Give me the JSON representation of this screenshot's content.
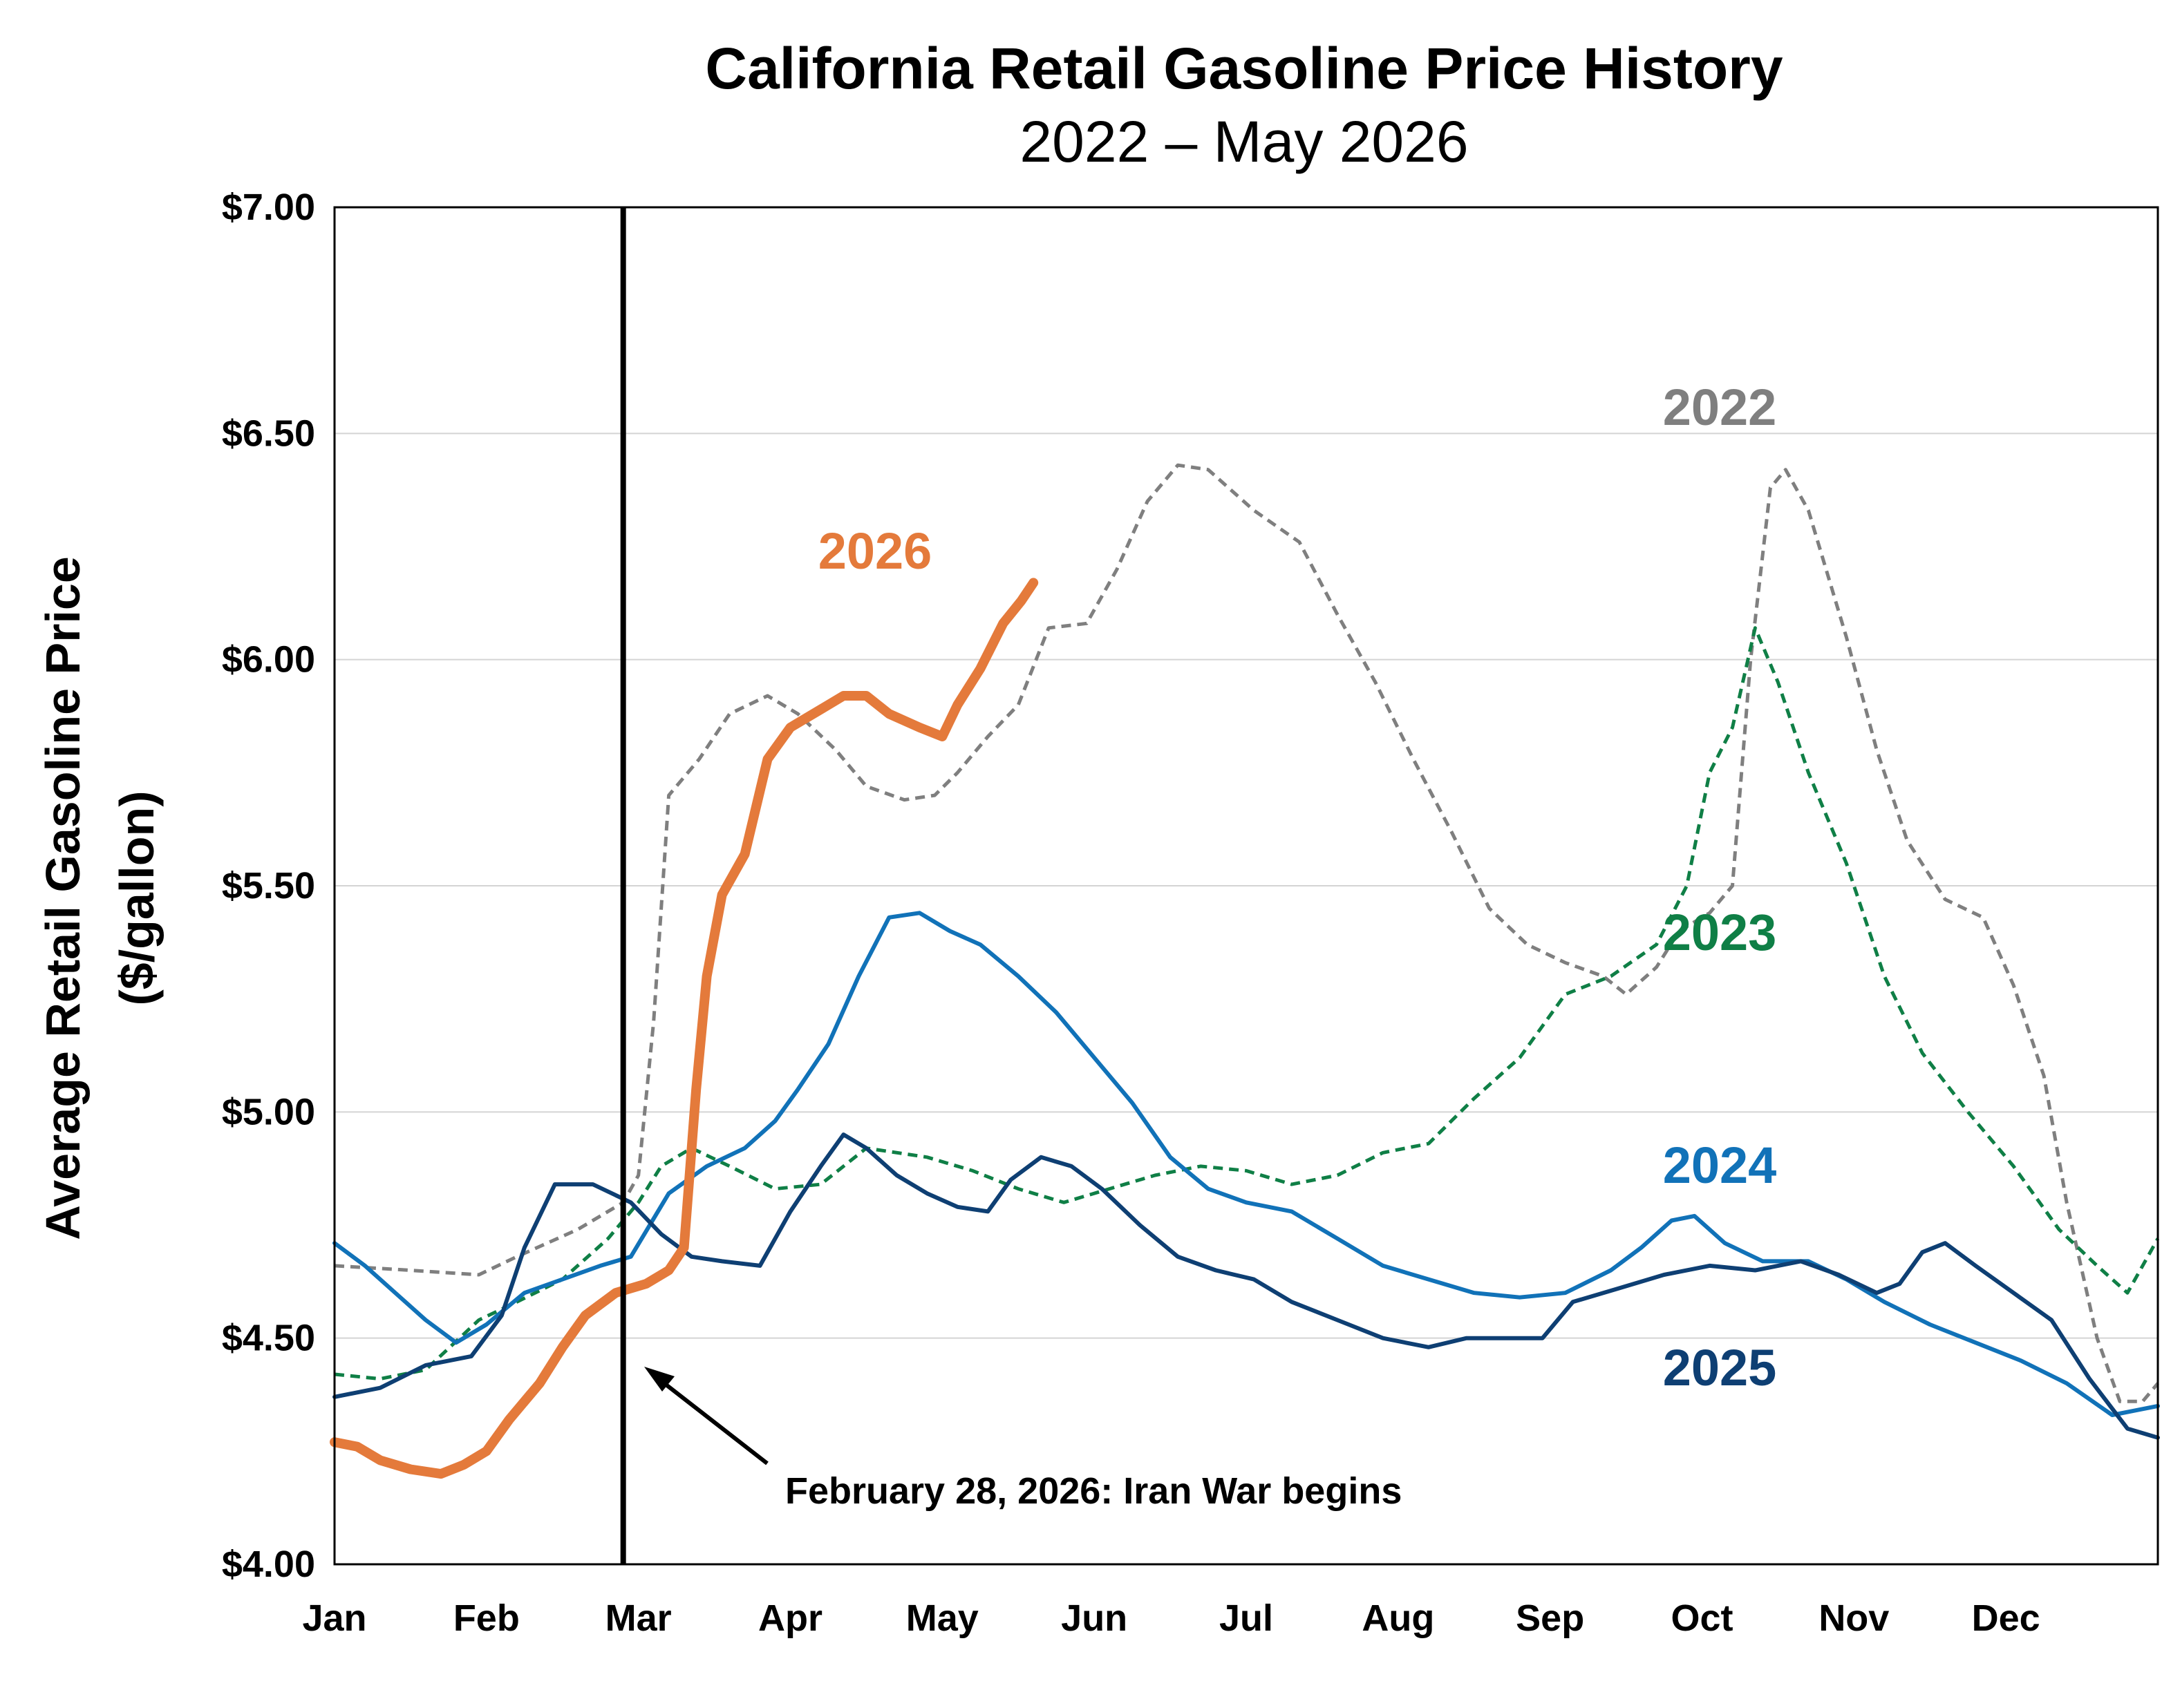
{
  "chart_data": {
    "type": "line",
    "title": "California Retail Gasoline Price History",
    "subtitle": "2022 – May 2026",
    "ylabel": "Average Retail Gasoline Price",
    "ylabel2": "($/gallon)",
    "xlabel": "",
    "months": [
      "Jan",
      "Feb",
      "Mar",
      "Apr",
      "May",
      "Jun",
      "Jul",
      "Aug",
      "Sep",
      "Oct",
      "Nov",
      "Dec"
    ],
    "ylim": [
      4.0,
      7.0
    ],
    "yticks": [
      4.0,
      4.5,
      5.0,
      5.5,
      6.0,
      6.5,
      7.0
    ],
    "ytick_labels": [
      "$4.00",
      "$4.50",
      "$5.00",
      "$5.50",
      "$6.00",
      "$6.50",
      "$7.00"
    ],
    "grid": "horizontal",
    "x_unit": "month of year (0 = Jan 1, 12 = Dec 31)",
    "series": [
      {
        "name": "2022",
        "color": "#7f7f7f",
        "dash": "dashed",
        "width": 5,
        "values": [
          [
            0,
            4.66
          ],
          [
            0.5,
            4.65
          ],
          [
            0.95,
            4.64
          ],
          [
            1.2,
            4.68
          ],
          [
            1.6,
            4.74
          ],
          [
            1.9,
            4.8
          ],
          [
            2.0,
            4.86
          ],
          [
            2.1,
            5.2
          ],
          [
            2.2,
            5.7
          ],
          [
            2.4,
            5.78
          ],
          [
            2.6,
            5.88
          ],
          [
            2.85,
            5.92
          ],
          [
            3.05,
            5.88
          ],
          [
            3.3,
            5.8
          ],
          [
            3.5,
            5.72
          ],
          [
            3.75,
            5.69
          ],
          [
            3.95,
            5.7
          ],
          [
            4.1,
            5.75
          ],
          [
            4.3,
            5.83
          ],
          [
            4.5,
            5.9
          ],
          [
            4.7,
            6.07
          ],
          [
            4.95,
            6.08
          ],
          [
            5.15,
            6.2
          ],
          [
            5.35,
            6.35
          ],
          [
            5.55,
            6.43
          ],
          [
            5.75,
            6.42
          ],
          [
            6.05,
            6.33
          ],
          [
            6.35,
            6.26
          ],
          [
            6.6,
            6.1
          ],
          [
            6.85,
            5.95
          ],
          [
            7.1,
            5.78
          ],
          [
            7.35,
            5.62
          ],
          [
            7.6,
            5.45
          ],
          [
            7.85,
            5.37
          ],
          [
            8.1,
            5.33
          ],
          [
            8.35,
            5.3
          ],
          [
            8.5,
            5.26
          ],
          [
            8.7,
            5.32
          ],
          [
            8.85,
            5.4
          ],
          [
            9.05,
            5.44
          ],
          [
            9.2,
            5.5
          ],
          [
            9.32,
            6.0
          ],
          [
            9.45,
            6.38
          ],
          [
            9.55,
            6.42
          ],
          [
            9.7,
            6.33
          ],
          [
            9.95,
            6.05
          ],
          [
            10.15,
            5.8
          ],
          [
            10.35,
            5.6
          ],
          [
            10.6,
            5.47
          ],
          [
            10.85,
            5.43
          ],
          [
            11.05,
            5.28
          ],
          [
            11.25,
            5.08
          ],
          [
            11.4,
            4.8
          ],
          [
            11.6,
            4.5
          ],
          [
            11.75,
            4.36
          ],
          [
            11.9,
            4.36
          ],
          [
            12.0,
            4.4
          ]
        ]
      },
      {
        "name": "2023",
        "color": "#0f7f46",
        "dash": "dashed",
        "width": 5,
        "values": [
          [
            0,
            4.42
          ],
          [
            0.3,
            4.41
          ],
          [
            0.6,
            4.43
          ],
          [
            0.95,
            4.54
          ],
          [
            1.2,
            4.58
          ],
          [
            1.5,
            4.63
          ],
          [
            1.8,
            4.72
          ],
          [
            2.0,
            4.8
          ],
          [
            2.15,
            4.88
          ],
          [
            2.35,
            4.92
          ],
          [
            2.6,
            4.88
          ],
          [
            2.9,
            4.83
          ],
          [
            3.2,
            4.84
          ],
          [
            3.5,
            4.92
          ],
          [
            3.9,
            4.9
          ],
          [
            4.2,
            4.87
          ],
          [
            4.5,
            4.83
          ],
          [
            4.8,
            4.8
          ],
          [
            5.1,
            4.83
          ],
          [
            5.4,
            4.86
          ],
          [
            5.7,
            4.88
          ],
          [
            6.0,
            4.87
          ],
          [
            6.3,
            4.84
          ],
          [
            6.6,
            4.86
          ],
          [
            6.9,
            4.91
          ],
          [
            7.2,
            4.93
          ],
          [
            7.5,
            5.03
          ],
          [
            7.8,
            5.12
          ],
          [
            8.1,
            5.26
          ],
          [
            8.4,
            5.3
          ],
          [
            8.7,
            5.37
          ],
          [
            8.9,
            5.5
          ],
          [
            9.05,
            5.75
          ],
          [
            9.2,
            5.85
          ],
          [
            9.35,
            6.07
          ],
          [
            9.5,
            5.95
          ],
          [
            9.7,
            5.75
          ],
          [
            9.95,
            5.55
          ],
          [
            10.2,
            5.3
          ],
          [
            10.45,
            5.13
          ],
          [
            10.75,
            5.0
          ],
          [
            11.05,
            4.88
          ],
          [
            11.35,
            4.74
          ],
          [
            11.6,
            4.66
          ],
          [
            11.8,
            4.6
          ],
          [
            12.0,
            4.72
          ]
        ]
      },
      {
        "name": "2024",
        "color": "#1172b8",
        "dash": "solid",
        "width": 6,
        "values": [
          [
            0,
            4.71
          ],
          [
            0.2,
            4.66
          ],
          [
            0.4,
            4.6
          ],
          [
            0.6,
            4.54
          ],
          [
            0.8,
            4.49
          ],
          [
            1.0,
            4.53
          ],
          [
            1.25,
            4.6
          ],
          [
            1.5,
            4.63
          ],
          [
            1.75,
            4.66
          ],
          [
            1.95,
            4.68
          ],
          [
            2.2,
            4.82
          ],
          [
            2.45,
            4.88
          ],
          [
            2.7,
            4.92
          ],
          [
            2.9,
            4.98
          ],
          [
            3.05,
            5.05
          ],
          [
            3.25,
            5.15
          ],
          [
            3.45,
            5.3
          ],
          [
            3.65,
            5.43
          ],
          [
            3.85,
            5.44
          ],
          [
            4.05,
            5.4
          ],
          [
            4.25,
            5.37
          ],
          [
            4.5,
            5.3
          ],
          [
            4.75,
            5.22
          ],
          [
            5.0,
            5.12
          ],
          [
            5.25,
            5.02
          ],
          [
            5.5,
            4.9
          ],
          [
            5.75,
            4.83
          ],
          [
            6.0,
            4.8
          ],
          [
            6.3,
            4.78
          ],
          [
            6.6,
            4.72
          ],
          [
            6.9,
            4.66
          ],
          [
            7.2,
            4.63
          ],
          [
            7.5,
            4.6
          ],
          [
            7.8,
            4.59
          ],
          [
            8.1,
            4.6
          ],
          [
            8.4,
            4.65
          ],
          [
            8.6,
            4.7
          ],
          [
            8.8,
            4.76
          ],
          [
            8.95,
            4.77
          ],
          [
            9.15,
            4.71
          ],
          [
            9.4,
            4.67
          ],
          [
            9.7,
            4.67
          ],
          [
            9.95,
            4.63
          ],
          [
            10.2,
            4.58
          ],
          [
            10.5,
            4.53
          ],
          [
            10.8,
            4.49
          ],
          [
            11.1,
            4.45
          ],
          [
            11.4,
            4.4
          ],
          [
            11.7,
            4.33
          ],
          [
            11.85,
            4.34
          ],
          [
            12.0,
            4.35
          ]
        ]
      },
      {
        "name": "2025",
        "color": "#0e3f73",
        "dash": "solid",
        "width": 6,
        "values": [
          [
            0,
            4.37
          ],
          [
            0.3,
            4.39
          ],
          [
            0.6,
            4.44
          ],
          [
            0.9,
            4.46
          ],
          [
            1.1,
            4.55
          ],
          [
            1.25,
            4.7
          ],
          [
            1.45,
            4.84
          ],
          [
            1.7,
            4.84
          ],
          [
            1.95,
            4.8
          ],
          [
            2.15,
            4.73
          ],
          [
            2.35,
            4.68
          ],
          [
            2.55,
            4.67
          ],
          [
            2.8,
            4.66
          ],
          [
            3.0,
            4.78
          ],
          [
            3.2,
            4.88
          ],
          [
            3.35,
            4.95
          ],
          [
            3.5,
            4.92
          ],
          [
            3.7,
            4.86
          ],
          [
            3.9,
            4.82
          ],
          [
            4.1,
            4.79
          ],
          [
            4.3,
            4.78
          ],
          [
            4.45,
            4.85
          ],
          [
            4.65,
            4.9
          ],
          [
            4.85,
            4.88
          ],
          [
            5.05,
            4.83
          ],
          [
            5.3,
            4.75
          ],
          [
            5.55,
            4.68
          ],
          [
            5.8,
            4.65
          ],
          [
            6.05,
            4.63
          ],
          [
            6.3,
            4.58
          ],
          [
            6.6,
            4.54
          ],
          [
            6.9,
            4.5
          ],
          [
            7.2,
            4.48
          ],
          [
            7.45,
            4.5
          ],
          [
            7.7,
            4.5
          ],
          [
            7.95,
            4.5
          ],
          [
            8.15,
            4.58
          ],
          [
            8.45,
            4.61
          ],
          [
            8.75,
            4.64
          ],
          [
            9.05,
            4.66
          ],
          [
            9.35,
            4.65
          ],
          [
            9.65,
            4.67
          ],
          [
            9.9,
            4.64
          ],
          [
            10.15,
            4.6
          ],
          [
            10.3,
            4.62
          ],
          [
            10.45,
            4.69
          ],
          [
            10.6,
            4.71
          ],
          [
            10.8,
            4.66
          ],
          [
            11.05,
            4.6
          ],
          [
            11.3,
            4.54
          ],
          [
            11.55,
            4.41
          ],
          [
            11.8,
            4.3
          ],
          [
            12.0,
            4.28
          ]
        ]
      },
      {
        "name": "2026",
        "color": "#e47a3b",
        "dash": "solid",
        "width": 14,
        "values": [
          [
            0,
            4.27
          ],
          [
            0.15,
            4.26
          ],
          [
            0.3,
            4.23
          ],
          [
            0.5,
            4.21
          ],
          [
            0.7,
            4.2
          ],
          [
            0.85,
            4.22
          ],
          [
            1.0,
            4.25
          ],
          [
            1.15,
            4.32
          ],
          [
            1.35,
            4.4
          ],
          [
            1.5,
            4.48
          ],
          [
            1.65,
            4.55
          ],
          [
            1.85,
            4.6
          ],
          [
            2.05,
            4.62
          ],
          [
            2.2,
            4.65
          ],
          [
            2.3,
            4.7
          ],
          [
            2.38,
            5.05
          ],
          [
            2.45,
            5.3
          ],
          [
            2.55,
            5.48
          ],
          [
            2.7,
            5.57
          ],
          [
            2.85,
            5.78
          ],
          [
            3.0,
            5.85
          ],
          [
            3.2,
            5.89
          ],
          [
            3.35,
            5.92
          ],
          [
            3.5,
            5.92
          ],
          [
            3.65,
            5.88
          ],
          [
            3.85,
            5.85
          ],
          [
            4.0,
            5.83
          ],
          [
            4.1,
            5.9
          ],
          [
            4.25,
            5.98
          ],
          [
            4.4,
            6.08
          ],
          [
            4.52,
            6.13
          ],
          [
            4.6,
            6.17
          ]
        ]
      }
    ],
    "series_labels": [
      {
        "text": "2022",
        "color": "#7f7f7f"
      },
      {
        "text": "2023",
        "color": "#0f7f46"
      },
      {
        "text": "2024",
        "color": "#1172b8"
      },
      {
        "text": "2025",
        "color": "#0e3f73"
      },
      {
        "text": "2026",
        "color": "#e47a3b"
      }
    ],
    "event_line_month": 1.9,
    "annotation": "February 28, 2026: Iran War begins"
  }
}
